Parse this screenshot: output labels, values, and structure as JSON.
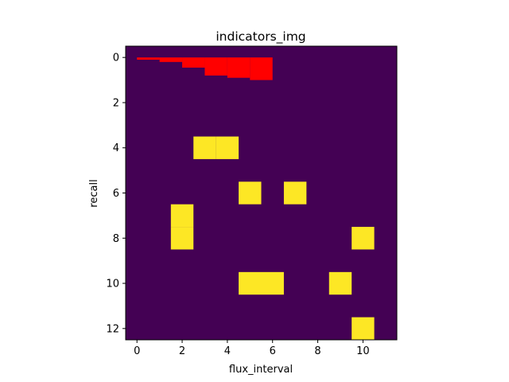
{
  "chart_data": {
    "type": "heatmap",
    "title": "indicators_img",
    "xlabel": "flux_interval",
    "ylabel": "recall",
    "xlim": [
      -0.5,
      11.5
    ],
    "ylim": [
      12.5,
      -0.5
    ],
    "xticks": [
      0,
      2,
      4,
      6,
      8,
      10
    ],
    "yticks": [
      0,
      2,
      4,
      6,
      8,
      10,
      12
    ],
    "n_rows": 13,
    "n_cols": 12,
    "background_color": "#440154",
    "highlight_color": "#fde725",
    "overlay_color": "#ff0000",
    "highlighted_cells": [
      {
        "row": 4,
        "col": 3
      },
      {
        "row": 4,
        "col": 4
      },
      {
        "row": 6,
        "col": 5
      },
      {
        "row": 6,
        "col": 7
      },
      {
        "row": 7,
        "col": 2
      },
      {
        "row": 8,
        "col": 2
      },
      {
        "row": 8,
        "col": 10
      },
      {
        "row": 10,
        "col": 5
      },
      {
        "row": 10,
        "col": 6
      },
      {
        "row": 10,
        "col": 9
      },
      {
        "row": 12,
        "col": 10
      }
    ],
    "overlay_steps": [
      {
        "x0": 0,
        "x1": 1,
        "y": 0.1
      },
      {
        "x0": 1,
        "x1": 2,
        "y": 0.2
      },
      {
        "x0": 2,
        "x1": 3,
        "y": 0.45
      },
      {
        "x0": 3,
        "x1": 4,
        "y": 0.8
      },
      {
        "x0": 4,
        "x1": 5,
        "y": 0.9
      },
      {
        "x0": 5,
        "x1": 6,
        "y": 1.0
      }
    ]
  }
}
